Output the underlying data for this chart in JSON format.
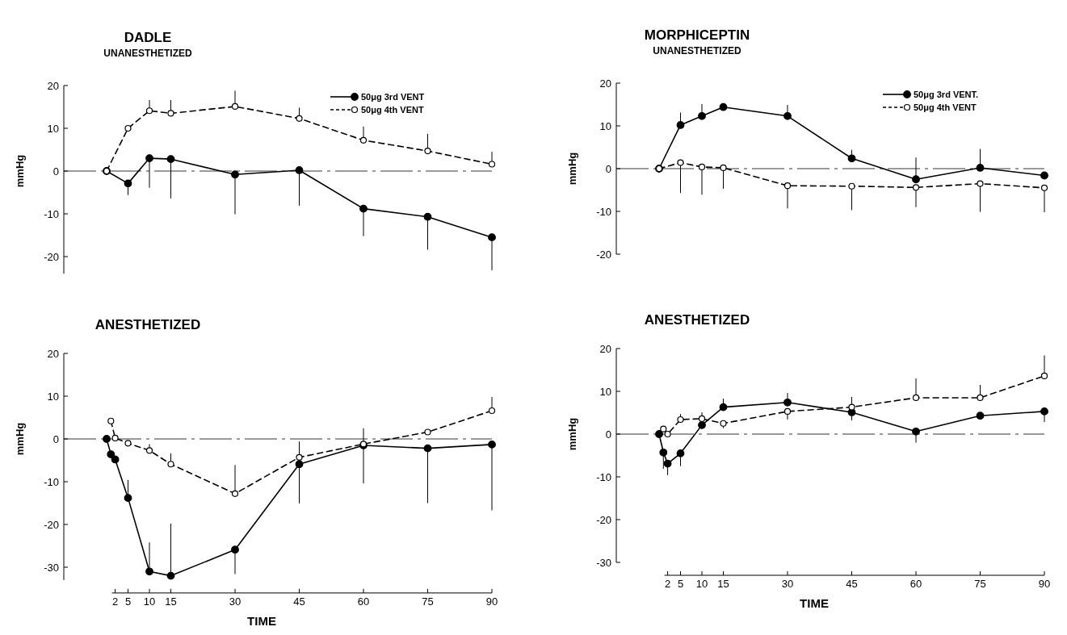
{
  "chart_data": [
    {
      "type": "line",
      "title": "DADLE",
      "subtitle": "UNANESTHETIZED",
      "ylabel": "mmHg",
      "xlim": [
        -10,
        90
      ],
      "ylim": [
        -24,
        20
      ],
      "yticks": [
        -20,
        -10,
        0,
        10,
        20
      ],
      "tick_labels": "y",
      "marker": "circle",
      "legend": "top right",
      "ref_lines": [
        {
          "axis": "y",
          "value": 0,
          "line_style": "dashed"
        }
      ],
      "series": [
        {
          "name": "50μg 3rd VENT",
          "color": "#000000",
          "line_style": "solid",
          "x": [
            0,
            5,
            10,
            15,
            30,
            45,
            60,
            75,
            90
          ],
          "values": [
            0,
            -2.9,
            3.0,
            2.8,
            -0.8,
            0.2,
            -8.8,
            -10.7,
            -15.5
          ],
          "errors": [
            null,
            [
              -5.6,
              -2.9
            ],
            [
              -3.9,
              3.0
            ],
            [
              -6.4,
              2.8
            ],
            [
              -10.1,
              -0.8
            ],
            [
              -8.1,
              0.2
            ],
            [
              -15.2,
              -8.8
            ],
            [
              -18.4,
              -10.7
            ],
            [
              -23.2,
              -15.5
            ]
          ]
        },
        {
          "name": "50μg 4th VENT",
          "color": "#000000",
          "line_style": "dashed",
          "x": [
            0,
            5,
            10,
            15,
            30,
            45,
            60,
            75,
            90
          ],
          "values": [
            0,
            10.0,
            14.1,
            13.5,
            15.1,
            12.3,
            7.2,
            4.7,
            1.6
          ],
          "errors": [
            null,
            null,
            [
              14.1,
              16.6
            ],
            [
              13.5,
              16.6
            ],
            [
              15.1,
              18.8
            ],
            [
              12.3,
              14.8
            ],
            [
              7.2,
              10.4
            ],
            [
              4.7,
              8.7
            ],
            [
              1.6,
              4.5
            ]
          ]
        }
      ]
    },
    {
      "type": "line",
      "title": "MORPHICEPTIN",
      "subtitle": "UNANESTHETIZED",
      "ylabel": "mmHg",
      "xlim": [
        -10,
        90
      ],
      "ylim": [
        -20,
        20
      ],
      "yticks": [
        -20,
        -10,
        0,
        10,
        20
      ],
      "tick_labels": "y",
      "marker": "circle",
      "legend": "top right",
      "ref_lines": [
        {
          "axis": "y",
          "value": 0,
          "line_style": "dashed"
        }
      ],
      "series": [
        {
          "name": "50μg 3rd VENT.",
          "color": "#000000",
          "line_style": "solid",
          "x": [
            0,
            5,
            10,
            15,
            30,
            45,
            60,
            75,
            90
          ],
          "values": [
            0,
            10.2,
            12.3,
            14.4,
            12.3,
            2.4,
            -2.5,
            0.2,
            -1.6
          ],
          "errors": [
            null,
            [
              10.2,
              13.1
            ],
            [
              12.3,
              15.1
            ],
            [
              14.4,
              15.3
            ],
            [
              12.3,
              14.9
            ],
            [
              2.4,
              4.4
            ],
            [
              -2.5,
              2.6
            ],
            [
              0.2,
              4.6
            ],
            null
          ]
        },
        {
          "name": "50μg 4th VENT",
          "color": "#000000",
          "line_style": "dashed",
          "x": [
            0,
            5,
            10,
            15,
            30,
            45,
            60,
            75,
            90
          ],
          "values": [
            0,
            1.4,
            0.4,
            0.2,
            -4.0,
            -4.1,
            -4.4,
            -3.5,
            -4.5
          ],
          "errors": [
            null,
            [
              -5.7,
              1.4
            ],
            [
              -6.1,
              0.4
            ],
            [
              -4.7,
              0.2
            ],
            [
              -9.3,
              -4.0
            ],
            [
              -9.7,
              -4.1
            ],
            [
              -9.0,
              -4.4
            ],
            [
              -10.1,
              -3.5
            ],
            [
              -10.2,
              -4.5
            ]
          ]
        }
      ]
    },
    {
      "type": "line",
      "title": "ANESTHETIZED",
      "xlabel": "TIME",
      "ylabel": "mmHg",
      "xlim": [
        -10,
        90
      ],
      "xticks": [
        2,
        5,
        10,
        15,
        30,
        45,
        60,
        75,
        90
      ],
      "ylim": [
        -33,
        20
      ],
      "yticks": [
        -30,
        -20,
        -10,
        0,
        10,
        20
      ],
      "marker": "circle",
      "ref_lines": [
        {
          "axis": "y",
          "value": 0,
          "line_style": "dashed"
        }
      ],
      "series": [
        {
          "color": "#000000",
          "line_style": "solid",
          "x": [
            0,
            1,
            2,
            5,
            10,
            15,
            30,
            45,
            60,
            75,
            90
          ],
          "values": [
            0,
            -3.6,
            -4.8,
            -13.8,
            -31.0,
            -32.0,
            -25.9,
            -5.9,
            -1.5,
            -2.2,
            -1.3
          ],
          "errors": [
            null,
            null,
            null,
            [
              -13.8,
              -9.6
            ],
            [
              -31.0,
              -24.2
            ],
            [
              -32.0,
              -19.8
            ],
            [
              -31.6,
              -25.9
            ],
            [
              -15.1,
              -5.9
            ],
            [
              -10.4,
              -1.5
            ],
            [
              -15.0,
              -2.2
            ],
            [
              -16.7,
              -1.3
            ]
          ]
        },
        {
          "color": "#000000",
          "line_style": "dashed",
          "x": [
            1,
            2,
            5,
            10,
            15,
            30,
            45,
            60,
            75,
            90
          ],
          "values": [
            4.2,
            0.2,
            -1.0,
            -2.7,
            -5.9,
            -12.8,
            -4.3,
            -1.2,
            1.6,
            6.6
          ],
          "errors": [
            null,
            null,
            null,
            [
              -2.7,
              -1.2
            ],
            [
              -5.9,
              -3.4
            ],
            [
              -12.8,
              -6.1
            ],
            [
              -4.3,
              -0.6
            ],
            [
              -1.2,
              2.5
            ],
            null,
            [
              6.6,
              9.8
            ]
          ]
        }
      ]
    },
    {
      "type": "line",
      "title": "ANESTHETIZED",
      "xlabel": "TIME",
      "ylabel": "mmHg",
      "xlim": [
        -10,
        90
      ],
      "xticks": [
        2,
        5,
        10,
        15,
        30,
        45,
        60,
        75,
        90
      ],
      "ylim": [
        -30,
        20
      ],
      "yticks": [
        -30,
        -20,
        -10,
        0,
        10,
        20
      ],
      "marker": "circle",
      "ref_lines": [
        {
          "axis": "y",
          "value": 0,
          "line_style": "dashed"
        }
      ],
      "series": [
        {
          "color": "#000000",
          "line_style": "solid",
          "x": [
            0,
            1,
            2,
            5,
            10,
            15,
            30,
            45,
            60,
            75,
            90
          ],
          "values": [
            0,
            -4.3,
            -6.9,
            -4.5,
            2.1,
            6.3,
            7.4,
            5.1,
            0.6,
            4.3,
            5.3
          ],
          "errors": [
            null,
            [
              -8.1,
              -4.3
            ],
            [
              -9.6,
              -6.9
            ],
            [
              -7.5,
              -4.5
            ],
            null,
            [
              6.3,
              8.3
            ],
            [
              7.4,
              9.6
            ],
            [
              3.2,
              5.1
            ],
            [
              -2.0,
              0.6
            ],
            null,
            [
              2.8,
              5.3
            ]
          ]
        },
        {
          "color": "#000000",
          "line_style": "dashed",
          "x": [
            1,
            2,
            5,
            10,
            15,
            30,
            45,
            60,
            75,
            90
          ],
          "values": [
            1.2,
            0,
            3.4,
            3.6,
            2.5,
            5.3,
            6.3,
            8.5,
            8.5,
            13.6
          ],
          "errors": [
            null,
            null,
            [
              3.4,
              4.7
            ],
            [
              3.6,
              5.1
            ],
            [
              1.4,
              2.5
            ],
            [
              3.4,
              5.3
            ],
            [
              6.3,
              8.7
            ],
            [
              8.5,
              13.0
            ],
            [
              8.5,
              11.5
            ],
            [
              13.6,
              18.4
            ]
          ]
        }
      ]
    }
  ]
}
